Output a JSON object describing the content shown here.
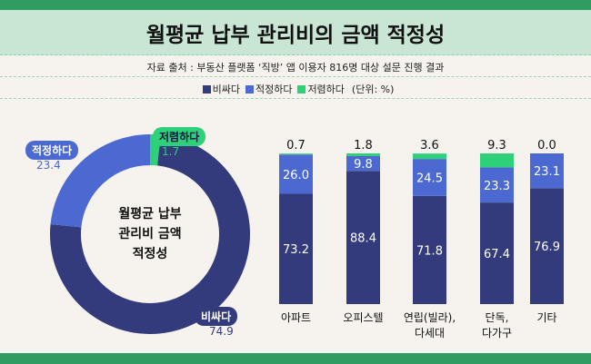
{
  "title": "월평균 납부 관리비의 금액 적정성",
  "source": "자료 출처 : 부동산 플랫폼 ‘직방’ 앱 이용자 816명 대상 설문 진행 결과",
  "unit": "(단위: %)",
  "colors": {
    "expensive": "#343b7d",
    "appropriate": "#4b69d1",
    "cheap": "#2fd07a"
  },
  "chart_data": [
    {
      "type": "pie",
      "donut": true,
      "center_label": [
        "월평균 납부",
        "관리비 금액",
        "적정성"
      ],
      "slices": [
        {
          "name": "저렴하다",
          "value": 1.7
        },
        {
          "name": "비싸다",
          "value": 74.9
        },
        {
          "name": "적정하다",
          "value": 23.4
        }
      ]
    },
    {
      "type": "bar",
      "stacked": true,
      "ylim": [
        0,
        100
      ],
      "categories": [
        [
          "아파트"
        ],
        [
          "오피스텔"
        ],
        [
          "연립(빌라),",
          "다세대"
        ],
        [
          "단독,",
          "다가구"
        ],
        [
          "기타"
        ]
      ],
      "series": [
        {
          "name": "비싸다",
          "values": [
            73.2,
            88.4,
            71.8,
            67.4,
            76.9
          ]
        },
        {
          "name": "적정하다",
          "values": [
            26.0,
            9.8,
            24.5,
            23.3,
            23.1
          ]
        },
        {
          "name": "저렴하다",
          "values": [
            0.7,
            1.8,
            3.6,
            9.3,
            0.0
          ]
        }
      ],
      "legend_placement": "top"
    }
  ]
}
